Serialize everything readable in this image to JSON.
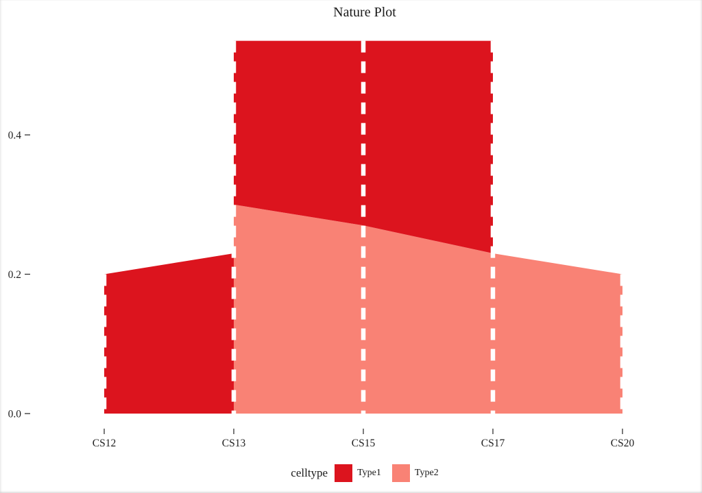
{
  "chart_data": {
    "type": "area",
    "subtype": "stacked-ribbon-alluvial",
    "title": "Nature Plot",
    "categories": [
      "CS12",
      "CS13",
      "CS15",
      "CS17",
      "CS20"
    ],
    "y_ticks": [
      {
        "label": "0.0",
        "value": 0.0
      },
      {
        "label": "0.2",
        "value": 0.2
      },
      {
        "label": "0.4",
        "value": 0.4
      }
    ],
    "ylim": [
      0,
      0.56
    ],
    "grid": false,
    "legend_title": "celltype",
    "legend_position": "bottom",
    "series": [
      {
        "name": "Type1",
        "color": "#DC141E",
        "bands": [
          {
            "categories": [
              "CS12",
              "CS13"
            ],
            "lower": [
              0,
              0
            ],
            "upper": [
              0.2,
              0.23
            ]
          },
          {
            "categories": [
              "CS13",
              "CS15",
              "CS17"
            ],
            "lower": [
              0.3,
              0.27,
              0.23
            ],
            "upper": [
              0.535,
              0.535,
              0.535
            ]
          }
        ]
      },
      {
        "name": "Type2",
        "color": "#F98275",
        "bands": [
          {
            "categories": [
              "CS13",
              "CS15",
              "CS17",
              "CS20"
            ],
            "lower": [
              0,
              0,
              0,
              0
            ],
            "upper": [
              0.3,
              0.27,
              0.23,
              0.2
            ]
          }
        ]
      }
    ],
    "stack_totals": {
      "CS12": 0.2,
      "CS13": 0.535,
      "CS15": 0.535,
      "CS17": 0.535,
      "CS20": 0.2
    },
    "guide_style": {
      "color": "#FFFFFF",
      "dash": "17 13",
      "width": 6.5
    },
    "axis_text_color": "#1e1e1e",
    "tick_color": "#333333"
  }
}
